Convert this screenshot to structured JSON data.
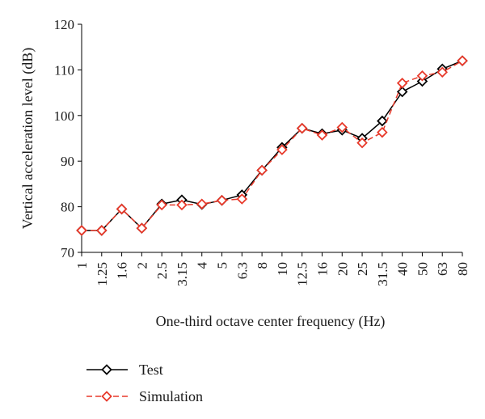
{
  "chart_data": {
    "type": "line",
    "xlabel": "One-third octave center frequency (Hz)",
    "ylabel": "Vertical acceleration level (dB)",
    "ylim": [
      70,
      120
    ],
    "yticks": [
      70,
      80,
      90,
      100,
      110,
      120
    ],
    "categories": [
      "1",
      "1.25",
      "1.6",
      "2",
      "2.5",
      "3.15",
      "4",
      "5",
      "6.3",
      "8",
      "10",
      "12.5",
      "16",
      "20",
      "25",
      "31.5",
      "40",
      "50",
      "63",
      "80"
    ],
    "grid": false,
    "legend_position": "bottom-left",
    "series": [
      {
        "name": "Test",
        "color": "#000000",
        "line_style": "solid",
        "marker": "diamond",
        "values": [
          74.8,
          74.8,
          79.5,
          75.3,
          80.6,
          81.5,
          80.5,
          81.4,
          82.6,
          88.0,
          93.0,
          97.2,
          96.0,
          96.8,
          95.0,
          98.8,
          105.2,
          107.5,
          110.2,
          112.0
        ]
      },
      {
        "name": "Simulation",
        "color": "#e8392a",
        "line_style": "dashed",
        "marker": "diamond",
        "values": [
          74.8,
          74.8,
          79.5,
          75.3,
          80.4,
          80.4,
          80.6,
          81.4,
          81.7,
          88.0,
          92.5,
          97.2,
          95.7,
          97.4,
          94.0,
          96.3,
          107.1,
          108.7,
          109.5,
          112.0
        ]
      }
    ]
  }
}
